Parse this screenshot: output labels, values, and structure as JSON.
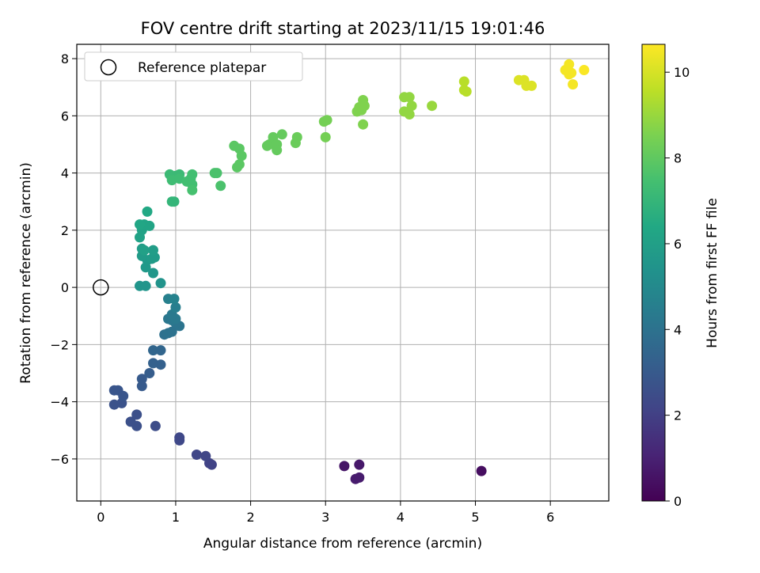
{
  "chart_data": {
    "type": "scatter",
    "title": "FOV centre drift starting at 2023/11/15 19:01:46",
    "xlabel": "Angular distance from reference (arcmin)",
    "ylabel": "Rotation from reference (arcmin)",
    "xlim": [
      -0.32,
      6.78
    ],
    "ylim": [
      -7.47,
      8.5
    ],
    "xticks": [
      0,
      1,
      2,
      3,
      4,
      5,
      6
    ],
    "yticks": [
      -6,
      -4,
      -2,
      0,
      2,
      4,
      6,
      8
    ],
    "grid": true,
    "legend": {
      "placement": "top-left",
      "entries": [
        "Reference platepar"
      ]
    },
    "reference_point": {
      "x": 0,
      "y": 0
    },
    "colorbar": {
      "label": "Hours from first FF file",
      "range": [
        0,
        10.65
      ],
      "ticks": [
        0,
        2,
        4,
        6,
        8,
        10
      ],
      "colormap": "viridis"
    },
    "points": [
      [
        5.08,
        -6.42,
        0.4
      ],
      [
        3.25,
        -6.25,
        0.6
      ],
      [
        3.45,
        -6.2,
        0.7
      ],
      [
        3.4,
        -6.7,
        0.8
      ],
      [
        3.45,
        -6.65,
        0.8
      ],
      [
        1.48,
        -6.2,
        2.1
      ],
      [
        1.45,
        -6.15,
        2.1
      ],
      [
        1.4,
        -5.9,
        2.2
      ],
      [
        1.28,
        -5.85,
        2.2
      ],
      [
        1.05,
        -5.25,
        2.3
      ],
      [
        1.05,
        -5.35,
        2.3
      ],
      [
        0.73,
        -4.85,
        2.5
      ],
      [
        0.48,
        -4.85,
        2.6
      ],
      [
        0.4,
        -4.7,
        2.6
      ],
      [
        0.48,
        -4.45,
        2.6
      ],
      [
        0.28,
        -4.05,
        2.7
      ],
      [
        0.18,
        -4.1,
        2.7
      ],
      [
        0.23,
        -3.6,
        2.8
      ],
      [
        0.3,
        -3.8,
        2.8
      ],
      [
        0.18,
        -3.6,
        2.8
      ],
      [
        0.55,
        -3.45,
        3.0
      ],
      [
        0.55,
        -3.2,
        3.0
      ],
      [
        0.65,
        -3.0,
        3.1
      ],
      [
        0.7,
        -2.65,
        3.3
      ],
      [
        0.8,
        -2.7,
        3.3
      ],
      [
        0.7,
        -2.2,
        3.5
      ],
      [
        0.8,
        -2.2,
        3.5
      ],
      [
        0.85,
        -1.65,
        3.9
      ],
      [
        0.9,
        -1.6,
        4.0
      ],
      [
        0.95,
        -1.55,
        4.0
      ],
      [
        1.05,
        -1.35,
        4.1
      ],
      [
        1.0,
        -1.25,
        4.1
      ],
      [
        0.9,
        -1.1,
        4.2
      ],
      [
        0.95,
        -1.15,
        4.2
      ],
      [
        1.0,
        -1.1,
        4.3
      ],
      [
        0.95,
        -0.95,
        4.3
      ],
      [
        1.0,
        -0.7,
        4.5
      ],
      [
        0.9,
        -0.4,
        4.6
      ],
      [
        0.98,
        -0.4,
        4.7
      ],
      [
        0.8,
        0.15,
        5.4
      ],
      [
        0.52,
        0.05,
        5.5
      ],
      [
        0.6,
        0.05,
        5.5
      ],
      [
        0.7,
        0.5,
        5.6
      ],
      [
        0.6,
        0.7,
        5.7
      ],
      [
        0.62,
        0.95,
        5.7
      ],
      [
        0.68,
        1.0,
        5.8
      ],
      [
        0.72,
        1.05,
        5.8
      ],
      [
        0.55,
        1.1,
        5.8
      ],
      [
        0.55,
        1.35,
        5.9
      ],
      [
        0.7,
        1.3,
        5.9
      ],
      [
        0.58,
        1.3,
        6.0
      ],
      [
        0.52,
        1.75,
        6.1
      ],
      [
        0.55,
        2.0,
        6.1
      ],
      [
        0.58,
        2.2,
        6.2
      ],
      [
        0.65,
        2.15,
        6.2
      ],
      [
        0.52,
        2.2,
        6.3
      ],
      [
        0.62,
        2.65,
        6.4
      ],
      [
        0.98,
        3.0,
        7.0
      ],
      [
        0.95,
        3.0,
        7.0
      ],
      [
        1.0,
        3.9,
        7.2
      ],
      [
        0.92,
        3.95,
        7.2
      ],
      [
        1.05,
        3.95,
        7.2
      ],
      [
        0.95,
        3.75,
        7.3
      ],
      [
        1.05,
        3.8,
        7.3
      ],
      [
        1.15,
        3.7,
        7.4
      ],
      [
        1.2,
        3.8,
        7.4
      ],
      [
        1.22,
        3.6,
        7.4
      ],
      [
        1.22,
        3.95,
        7.4
      ],
      [
        1.22,
        3.4,
        7.5
      ],
      [
        1.55,
        4.0,
        7.6
      ],
      [
        1.52,
        4.0,
        7.6
      ],
      [
        1.6,
        3.55,
        7.6
      ],
      [
        1.78,
        4.95,
        7.9
      ],
      [
        1.85,
        4.85,
        7.9
      ],
      [
        1.88,
        4.6,
        7.9
      ],
      [
        1.82,
        4.2,
        7.9
      ],
      [
        1.85,
        4.3,
        7.9
      ],
      [
        2.25,
        5.0,
        8.1
      ],
      [
        2.22,
        4.95,
        8.1
      ],
      [
        2.3,
        5.25,
        8.1
      ],
      [
        2.35,
        5.0,
        8.1
      ],
      [
        2.35,
        4.8,
        8.1
      ],
      [
        2.42,
        5.35,
        8.1
      ],
      [
        2.6,
        5.05,
        8.2
      ],
      [
        2.62,
        5.25,
        8.2
      ],
      [
        2.98,
        5.8,
        8.4
      ],
      [
        3.02,
        5.85,
        8.4
      ],
      [
        3.0,
        5.25,
        8.4
      ],
      [
        3.42,
        6.15,
        8.6
      ],
      [
        3.45,
        6.3,
        8.6
      ],
      [
        3.48,
        6.2,
        8.6
      ],
      [
        3.5,
        6.55,
        8.6
      ],
      [
        3.52,
        6.35,
        8.6
      ],
      [
        3.5,
        5.7,
        8.6
      ],
      [
        4.05,
        6.65,
        8.9
      ],
      [
        4.12,
        6.65,
        8.9
      ],
      [
        4.05,
        6.15,
        8.9
      ],
      [
        4.12,
        6.05,
        8.9
      ],
      [
        4.15,
        6.35,
        8.9
      ],
      [
        4.42,
        6.35,
        9.0
      ],
      [
        4.85,
        7.2,
        9.5
      ],
      [
        4.85,
        6.9,
        9.5
      ],
      [
        4.88,
        6.85,
        9.5
      ],
      [
        5.58,
        7.25,
        10.1
      ],
      [
        5.65,
        7.25,
        10.1
      ],
      [
        5.68,
        7.05,
        10.1
      ],
      [
        5.75,
        7.05,
        10.1
      ],
      [
        6.2,
        7.6,
        10.5
      ],
      [
        6.25,
        7.8,
        10.5
      ],
      [
        6.25,
        7.45,
        10.5
      ],
      [
        6.28,
        7.5,
        10.5
      ],
      [
        6.3,
        7.1,
        10.5
      ],
      [
        6.45,
        7.6,
        10.6
      ]
    ]
  }
}
